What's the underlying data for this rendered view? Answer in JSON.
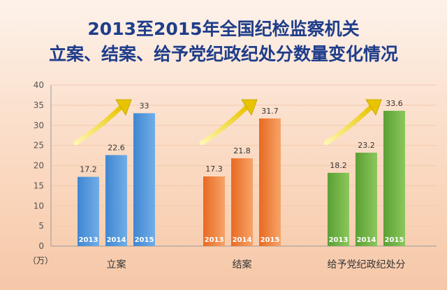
{
  "title_line1": "2013至2015年全国纪检监察机关",
  "title_line2": "立案、结案、给予党纪政纪处分数量变化情况",
  "unit_label": "（万）",
  "chart_data": {
    "type": "bar",
    "title": "2013至2015年全国纪检监察机关 立案、结案、给予党纪政纪处分数量变化情况",
    "ylabel": "（万）",
    "ylim": [
      0,
      40
    ],
    "yticks": [
      0,
      5,
      10,
      15,
      20,
      25,
      30,
      35,
      40
    ],
    "grid": true,
    "legend": "none",
    "year_labels": [
      "2013",
      "2014",
      "2015"
    ],
    "groups": [
      {
        "name": "立案",
        "values": [
          17.2,
          22.6,
          33
        ],
        "labels": [
          "17.2",
          "22.6",
          "33"
        ],
        "color": "#4d93d9"
      },
      {
        "name": "结案",
        "values": [
          17.3,
          21.8,
          31.7
        ],
        "labels": [
          "17.3",
          "21.8",
          "31.7"
        ],
        "color": "#ee7a2f"
      },
      {
        "name": "给予党纪政纪处分",
        "values": [
          18.2,
          23.2,
          33.6
        ],
        "labels": [
          "18.2",
          "23.2",
          "33.6"
        ],
        "color": "#6aae3e"
      }
    ]
  }
}
